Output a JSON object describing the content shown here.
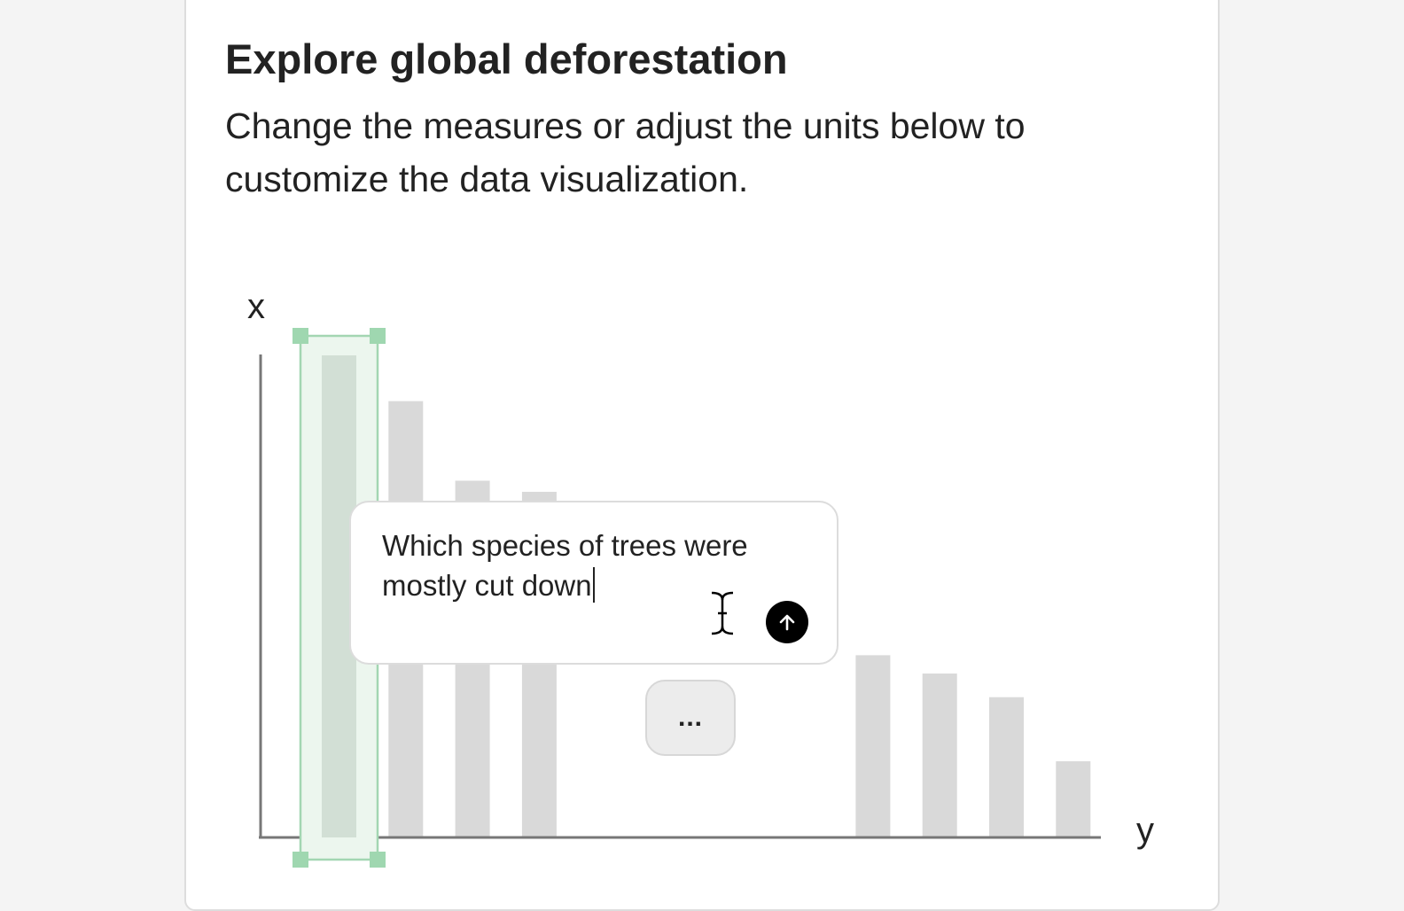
{
  "colors": {
    "bar": "#d9d9d9",
    "selected_bar": "#d2dfd5",
    "selection_fill": "#ecf6ee",
    "selection_border": "#a3d6b2",
    "selection_handle": "#9fd7b0",
    "axis": "#777777",
    "send_button": "#000000"
  },
  "card": {
    "title": "Explore global deforestation",
    "subtitle": "Change the measures or adjust the units below to customize the data visualization."
  },
  "prompt": {
    "text": "Which species of trees were mostly cut down",
    "send_icon": "arrow-up-icon",
    "cursor_icon": "text-cursor-icon"
  },
  "more_button": {
    "label": "..."
  },
  "chart_data": {
    "type": "bar",
    "xlabel": "y",
    "ylabel": "x",
    "selected_index": 0,
    "values": [
      100,
      90.5,
      74,
      71.7,
      null,
      null,
      null,
      null,
      37.8,
      34,
      29.1,
      15.8
    ],
    "ylim": [
      0,
      100
    ]
  }
}
